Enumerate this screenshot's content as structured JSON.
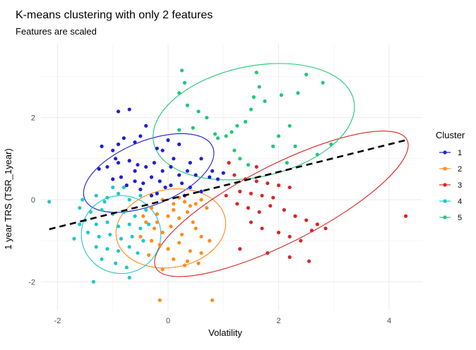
{
  "chart_data": {
    "type": "scatter",
    "title": "K-means clustering with only 2 features",
    "subtitle": "Features are scaled",
    "xlabel": "Volatility",
    "ylabel": "1 year TRS (TSR_1year)",
    "xlim": [
      -2.3,
      4.6
    ],
    "ylim": [
      -2.7,
      3.8
    ],
    "xticks": [
      -2,
      0,
      2,
      4
    ],
    "yticks": [
      -2,
      0,
      2
    ],
    "grid": true,
    "legend": {
      "title": "Cluster",
      "position": "right"
    },
    "regression_line": {
      "x": [
        -2.15,
        4.3
      ],
      "y": [
        -0.72,
        1.45
      ],
      "color": "#000000",
      "style": "dashed"
    },
    "series": [
      {
        "name": "1",
        "color": "#1f1fd6",
        "ellipse": {
          "cx": -0.35,
          "cy": 0.65,
          "rx": 1.25,
          "ry": 0.78,
          "angle": -22
        },
        "points": [
          [
            -1.2,
            1.3
          ],
          [
            -1.0,
            1.2
          ],
          [
            -0.9,
            1.35
          ],
          [
            -0.8,
            1.5
          ],
          [
            -0.6,
            1.4
          ],
          [
            -0.5,
            1.55
          ],
          [
            -0.4,
            1.8
          ],
          [
            -0.2,
            1.25
          ],
          [
            0.0,
            1.45
          ],
          [
            -0.1,
            1.2
          ],
          [
            0.2,
            1.35
          ],
          [
            0.4,
            0.9
          ],
          [
            0.6,
            1.0
          ],
          [
            -1.25,
            0.75
          ],
          [
            -1.1,
            0.8
          ],
          [
            -0.9,
            0.9
          ],
          [
            -0.7,
            0.95
          ],
          [
            -0.55,
            0.85
          ],
          [
            -0.4,
            0.8
          ],
          [
            -0.25,
            0.9
          ],
          [
            -0.1,
            0.7
          ],
          [
            0.05,
            0.8
          ],
          [
            0.2,
            0.6
          ],
          [
            0.35,
            0.7
          ],
          [
            0.5,
            0.6
          ],
          [
            0.75,
            0.55
          ],
          [
            0.8,
            0.7
          ],
          [
            0.9,
            0.5
          ],
          [
            1.0,
            0.65
          ],
          [
            -1.0,
            0.5
          ],
          [
            -0.85,
            0.55
          ],
          [
            -0.6,
            0.45
          ],
          [
            -0.45,
            0.4
          ],
          [
            -0.3,
            0.55
          ],
          [
            -0.15,
            0.45
          ],
          [
            0.05,
            0.35
          ],
          [
            0.25,
            0.4
          ],
          [
            0.4,
            0.3
          ],
          [
            0.6,
            0.2
          ],
          [
            -0.5,
            0.25
          ],
          [
            -0.3,
            0.1
          ],
          [
            -0.05,
            0.3
          ],
          [
            -0.7,
            2.2
          ],
          [
            -0.9,
            2.15
          ],
          [
            -0.95,
            1.0
          ],
          [
            -0.2,
            0.15
          ],
          [
            0.3,
            0.1
          ],
          [
            -0.6,
            0.7
          ],
          [
            -0.75,
            0.35
          ],
          [
            0.1,
            1.0
          ]
        ]
      },
      {
        "name": "2",
        "color": "#ff8c1a",
        "ellipse": {
          "cx": 0.05,
          "cy": -0.7,
          "rx": 1.0,
          "ry": 0.95,
          "angle": -10
        },
        "points": [
          [
            -0.1,
            0.0
          ],
          [
            0.1,
            -0.1
          ],
          [
            0.2,
            0.05
          ],
          [
            0.3,
            -0.05
          ],
          [
            0.4,
            -0.15
          ],
          [
            0.5,
            -0.1
          ],
          [
            0.6,
            0.0
          ],
          [
            0.7,
            -0.2
          ],
          [
            -0.3,
            -0.2
          ],
          [
            -0.2,
            -0.35
          ],
          [
            0.0,
            -0.4
          ],
          [
            0.2,
            -0.45
          ],
          [
            0.35,
            -0.3
          ],
          [
            0.45,
            -0.55
          ],
          [
            -0.4,
            -0.55
          ],
          [
            -0.25,
            -0.7
          ],
          [
            -0.1,
            -0.8
          ],
          [
            0.05,
            -0.65
          ],
          [
            0.25,
            -0.85
          ],
          [
            0.5,
            -0.7
          ],
          [
            0.6,
            -0.9
          ],
          [
            -0.5,
            -0.9
          ],
          [
            -0.3,
            -1.0
          ],
          [
            -0.15,
            -1.1
          ],
          [
            0.0,
            -1.2
          ],
          [
            0.2,
            -1.05
          ],
          [
            0.4,
            -1.25
          ],
          [
            0.6,
            -1.3
          ],
          [
            0.75,
            -1.0
          ],
          [
            -0.35,
            -1.35
          ],
          [
            0.1,
            -1.45
          ],
          [
            0.3,
            -1.6
          ],
          [
            -0.1,
            -1.7
          ],
          [
            0.55,
            -1.55
          ],
          [
            -0.15,
            -2.45
          ],
          [
            0.8,
            -2.45
          ],
          [
            -0.45,
            -0.4
          ],
          [
            0.1,
            -0.25
          ],
          [
            0.35,
            -1.5
          ],
          [
            -0.2,
            -0.55
          ]
        ]
      },
      {
        "name": "3",
        "color": "#d62728",
        "ellipse": {
          "cx": 2.05,
          "cy": -0.1,
          "rx": 2.55,
          "ry": 0.95,
          "angle": -27
        },
        "points": [
          [
            1.2,
            0.6
          ],
          [
            1.4,
            0.5
          ],
          [
            1.6,
            0.45
          ],
          [
            1.8,
            0.4
          ],
          [
            2.0,
            0.35
          ],
          [
            2.2,
            0.3
          ],
          [
            1.3,
            0.2
          ],
          [
            1.5,
            0.15
          ],
          [
            1.7,
            0.1
          ],
          [
            1.9,
            0.05
          ],
          [
            1.25,
            -0.1
          ],
          [
            1.45,
            -0.2
          ],
          [
            1.65,
            -0.3
          ],
          [
            1.85,
            -0.15
          ],
          [
            2.1,
            -0.25
          ],
          [
            2.3,
            -0.4
          ],
          [
            2.5,
            -0.5
          ],
          [
            2.7,
            -0.6
          ],
          [
            1.5,
            -0.55
          ],
          [
            1.7,
            -0.7
          ],
          [
            2.0,
            -0.8
          ],
          [
            2.2,
            -0.9
          ],
          [
            2.4,
            -1.0
          ],
          [
            2.6,
            -0.75
          ],
          [
            1.3,
            -1.2
          ],
          [
            1.8,
            -1.3
          ],
          [
            2.2,
            -1.4
          ],
          [
            2.55,
            -1.5
          ],
          [
            2.85,
            -0.7
          ],
          [
            4.3,
            -0.4
          ],
          [
            1.1,
            0.9
          ],
          [
            1.6,
            0.8
          ],
          [
            1.05,
            0.1
          ]
        ]
      },
      {
        "name": "4",
        "color": "#1fc8c8",
        "ellipse": {
          "cx": -0.85,
          "cy": -0.85,
          "rx": 0.72,
          "ry": 0.95,
          "angle": 5
        },
        "points": [
          [
            -1.55,
            0.0
          ],
          [
            -1.3,
            0.1
          ],
          [
            -1.1,
            0.05
          ],
          [
            -0.9,
            0.15
          ],
          [
            -0.7,
            0.0
          ],
          [
            -0.5,
            0.1
          ],
          [
            -1.6,
            -0.2
          ],
          [
            -1.4,
            -0.3
          ],
          [
            -1.2,
            -0.25
          ],
          [
            -1.0,
            -0.35
          ],
          [
            -0.8,
            -0.3
          ],
          [
            -0.6,
            -0.4
          ],
          [
            -0.4,
            -0.25
          ],
          [
            -1.5,
            -0.5
          ],
          [
            -1.3,
            -0.6
          ],
          [
            -1.1,
            -0.55
          ],
          [
            -0.9,
            -0.65
          ],
          [
            -0.7,
            -0.6
          ],
          [
            -0.5,
            -0.7
          ],
          [
            -1.45,
            -0.8
          ],
          [
            -1.25,
            -0.9
          ],
          [
            -1.05,
            -0.85
          ],
          [
            -0.85,
            -0.95
          ],
          [
            -0.65,
            -0.9
          ],
          [
            -0.45,
            -1.0
          ],
          [
            -1.3,
            -1.15
          ],
          [
            -1.1,
            -1.2
          ],
          [
            -0.9,
            -1.25
          ],
          [
            -0.7,
            -1.15
          ],
          [
            -1.2,
            -1.45
          ],
          [
            -0.95,
            -1.55
          ],
          [
            -0.75,
            -1.65
          ],
          [
            -2.15,
            -0.05
          ],
          [
            -1.35,
            -2.0
          ],
          [
            -0.7,
            -1.9
          ],
          [
            -1.7,
            -0.95
          ],
          [
            -0.35,
            -0.6
          ],
          [
            -1.0,
            0.3
          ],
          [
            -0.8,
            0.3
          ],
          [
            -1.15,
            -0.05
          ],
          [
            -0.55,
            -1.3
          ],
          [
            -1.6,
            -0.6
          ]
        ]
      },
      {
        "name": "5",
        "color": "#1fc878",
        "ellipse": {
          "cx": 1.55,
          "cy": 1.9,
          "rx": 1.85,
          "ry": 1.35,
          "angle": -12
        },
        "points": [
          [
            0.25,
            3.15
          ],
          [
            0.3,
            2.85
          ],
          [
            0.2,
            2.6
          ],
          [
            0.35,
            2.3
          ],
          [
            0.55,
            2.15
          ],
          [
            0.45,
            1.75
          ],
          [
            0.7,
            2.0
          ],
          [
            0.85,
            1.6
          ],
          [
            0.9,
            1.5
          ],
          [
            1.05,
            1.55
          ],
          [
            1.15,
            1.65
          ],
          [
            1.25,
            1.8
          ],
          [
            1.4,
            1.9
          ],
          [
            1.5,
            2.2
          ],
          [
            1.55,
            2.5
          ],
          [
            1.65,
            2.75
          ],
          [
            1.6,
            3.1
          ],
          [
            1.75,
            2.4
          ],
          [
            1.9,
            1.3
          ],
          [
            2.0,
            1.55
          ],
          [
            2.2,
            1.8
          ],
          [
            2.35,
            2.6
          ],
          [
            2.5,
            3.05
          ],
          [
            2.3,
            1.3
          ],
          [
            2.7,
            1.1
          ],
          [
            2.8,
            2.85
          ],
          [
            2.95,
            1.35
          ],
          [
            2.15,
            0.9
          ],
          [
            1.3,
            1.0
          ],
          [
            2.05,
            2.55
          ],
          [
            0.2,
            1.7
          ],
          [
            1.2,
            1.2
          ],
          [
            1.45,
            0.85
          ]
        ]
      }
    ]
  }
}
